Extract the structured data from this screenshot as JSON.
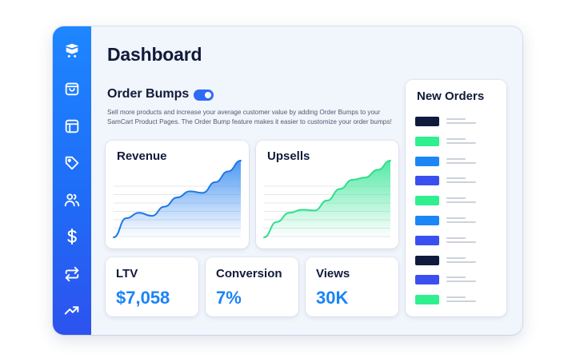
{
  "sidebar": {
    "items": [
      {
        "icon": "cart-logo-icon"
      },
      {
        "icon": "shopping-bag-icon"
      },
      {
        "icon": "layout-icon"
      },
      {
        "icon": "tag-icon"
      },
      {
        "icon": "users-icon"
      },
      {
        "icon": "dollar-icon"
      },
      {
        "icon": "repeat-icon"
      },
      {
        "icon": "trending-up-icon"
      }
    ]
  },
  "header": {
    "title": "Dashboard"
  },
  "order_bumps": {
    "title": "Order Bumps",
    "enabled": true,
    "description": "Sell more products and increase your average customer value by adding Order Bumps to your SamCart Product Pages. The Order Bump feature makes it easier to customize your order bumps!"
  },
  "charts": {
    "revenue": {
      "title": "Revenue",
      "line_color": "#1f78e6",
      "fill_color": "#2e86f0",
      "values": [
        0.0,
        0.25,
        0.32,
        0.28,
        0.4,
        0.52,
        0.6,
        0.58,
        0.72,
        0.86,
        1.0
      ]
    },
    "upsells": {
      "title": "Upsells",
      "line_color": "#2fdf8b",
      "fill_color": "#37e596",
      "values": [
        0.0,
        0.2,
        0.32,
        0.36,
        0.35,
        0.48,
        0.63,
        0.75,
        0.78,
        0.88,
        1.0
      ]
    }
  },
  "stats": [
    {
      "label": "LTV",
      "value": "$7,058"
    },
    {
      "label": "Conversion",
      "value": "7%"
    },
    {
      "label": "Views",
      "value": "30K"
    }
  ],
  "new_orders": {
    "title": "New Orders",
    "rows": [
      {
        "color": "#0f1a3d"
      },
      {
        "color": "#2ff08f"
      },
      {
        "color": "#1c86f7"
      },
      {
        "color": "#3a4ff0"
      },
      {
        "color": "#2ff08f"
      },
      {
        "color": "#1c86f7"
      },
      {
        "color": "#3a4ff0"
      },
      {
        "color": "#0f1a3d"
      },
      {
        "color": "#3a4ff0"
      },
      {
        "color": "#2ff08f"
      }
    ]
  },
  "colors": {
    "accent": "#1a84f5",
    "sidebar_top": "#1e86ff",
    "sidebar_bottom": "#2d52ee",
    "text_dark": "#111a3a"
  }
}
